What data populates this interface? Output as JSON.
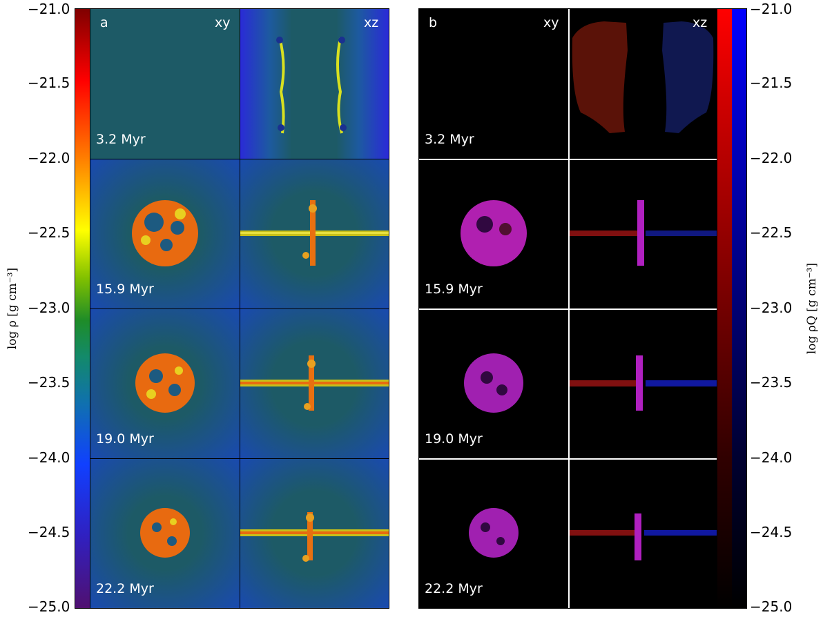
{
  "left_colorbar": {
    "ticks": [
      "−21.0",
      "−21.5",
      "−22.0",
      "−22.5",
      "−23.0",
      "−23.5",
      "−24.0",
      "−24.5",
      "−25.0"
    ],
    "label": "log ρ [g cm⁻³]",
    "colormap": "jet (purple-blue-green-yellow-red)"
  },
  "right_colorbar": {
    "ticks": [
      "−21.0",
      "−21.5",
      "−22.0",
      "−22.5",
      "−23.0",
      "−23.5",
      "−24.0",
      "−24.5",
      "−25.0"
    ],
    "label": "log ρQ [g cm⁻³]",
    "colors": {
      "red": "#ff0000",
      "blue": "#0000ff",
      "black": "#000000"
    }
  },
  "panel_a": {
    "letter": "a",
    "view_left": "xy",
    "view_right": "xz",
    "times": [
      "3.2 Myr",
      "15.9 Myr",
      "19.0 Myr",
      "22.2 Myr"
    ],
    "background_color": "#1d5a66"
  },
  "panel_b": {
    "letter": "b",
    "view_left": "xy",
    "view_right": "xz",
    "times": [
      "3.2 Myr",
      "15.9 Myr",
      "19.0 Myr",
      "22.2 Myr"
    ],
    "background_color": "#000000",
    "mix_color": "#cc22cc"
  }
}
